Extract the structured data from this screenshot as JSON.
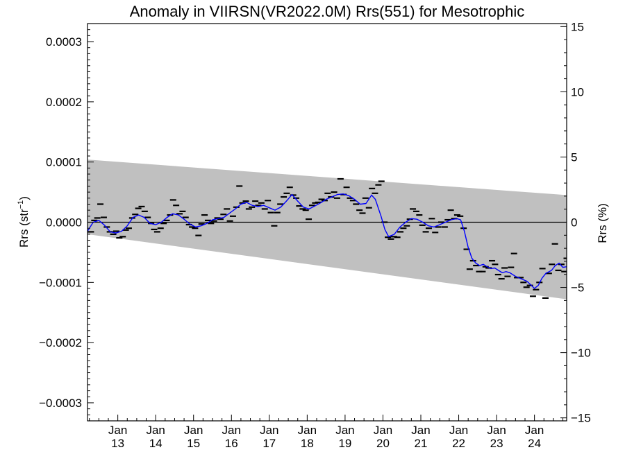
{
  "chart_data": {
    "type": "scatter",
    "title": "Anomaly in VIIRSN(VR2022.0M) Rrs(551) for Mesotrophic",
    "ylabel_left": "Rrs (str",
    "ylabel_left_sup": "−1",
    "ylabel_left_end": ")",
    "ylabel_right": "Rrs (%)",
    "xlim": [
      2012.2,
      2024.85
    ],
    "ylim_left": [
      -0.00033,
      0.00033
    ],
    "ylim_right": [
      -15.23,
      15.23
    ],
    "yticks_left": [
      {
        "v": 0.0003,
        "label": "0.0003"
      },
      {
        "v": 0.0002,
        "label": "0.0002"
      },
      {
        "v": 0.0001,
        "label": "0.0001"
      },
      {
        "v": 0.0,
        "label": "0.0000"
      },
      {
        "v": -0.0001,
        "label": "−0.0001"
      },
      {
        "v": -0.0002,
        "label": "−0.0002"
      },
      {
        "v": -0.0003,
        "label": "−0.0003"
      }
    ],
    "yticks_right": [
      {
        "v": 15,
        "label": "15"
      },
      {
        "v": 10,
        "label": "10"
      },
      {
        "v": 5,
        "label": "5"
      },
      {
        "v": 0,
        "label": "0"
      },
      {
        "v": -5,
        "label": "−5"
      },
      {
        "v": -10,
        "label": "−10"
      },
      {
        "v": -15,
        "label": "−15"
      }
    ],
    "xticks": [
      {
        "v": 2013.0,
        "month": "Jan",
        "year": "13"
      },
      {
        "v": 2014.0,
        "month": "Jan",
        "year": "14"
      },
      {
        "v": 2015.0,
        "month": "Jan",
        "year": "15"
      },
      {
        "v": 2016.0,
        "month": "Jan",
        "year": "16"
      },
      {
        "v": 2017.0,
        "month": "Jan",
        "year": "17"
      },
      {
        "v": 2018.0,
        "month": "Jan",
        "year": "18"
      },
      {
        "v": 2019.0,
        "month": "Jan",
        "year": "19"
      },
      {
        "v": 2020.0,
        "month": "Jan",
        "year": "20"
      },
      {
        "v": 2021.0,
        "month": "Jan",
        "year": "21"
      },
      {
        "v": 2022.0,
        "month": "Jan",
        "year": "22"
      },
      {
        "v": 2023.0,
        "month": "Jan",
        "year": "23"
      },
      {
        "v": 2024.0,
        "month": "Jan",
        "year": "24"
      }
    ],
    "band": {
      "color": "#c0c0c0",
      "upper": [
        [
          2012.2,
          0.000104
        ],
        [
          2024.85,
          4.5e-05
        ]
      ],
      "lower": [
        [
          2012.2,
          -2e-05
        ],
        [
          2024.85,
          -0.000128
        ]
      ]
    },
    "zero_line": 0,
    "smooth_color": "#0000ff",
    "monthly": [
      [
        2012.29,
        -1.6e-05
      ],
      [
        2012.38,
        3e-06
      ],
      [
        2012.46,
        7e-06
      ],
      [
        2012.54,
        3e-05
      ],
      [
        2012.63,
        8e-06
      ],
      [
        2012.71,
        -8e-06
      ],
      [
        2012.79,
        -1.6e-05
      ],
      [
        2012.88,
        -2e-05
      ],
      [
        2012.96,
        -1.5e-05
      ],
      [
        2013.04,
        -2.6e-05
      ],
      [
        2013.13,
        -2.4e-05
      ],
      [
        2013.21,
        -1.3e-05
      ],
      [
        2013.29,
        -1e-05
      ],
      [
        2013.38,
        7e-06
      ],
      [
        2013.46,
        1.3e-05
      ],
      [
        2013.54,
        2.3e-05
      ],
      [
        2013.63,
        2.6e-05
      ],
      [
        2013.71,
        1.8e-05
      ],
      [
        2013.79,
        8e-06
      ],
      [
        2013.88,
        -2e-06
      ],
      [
        2013.96,
        -1.2e-05
      ],
      [
        2014.04,
        -1.6e-05
      ],
      [
        2014.13,
        -1e-05
      ],
      [
        2014.21,
        -2e-06
      ],
      [
        2014.29,
        3e-06
      ],
      [
        2014.38,
        1.2e-05
      ],
      [
        2014.46,
        3.7e-05
      ],
      [
        2014.54,
        2.8e-05
      ],
      [
        2014.63,
        1.4e-05
      ],
      [
        2014.71,
        1.8e-05
      ],
      [
        2014.79,
        8e-06
      ],
      [
        2014.88,
        -4e-06
      ],
      [
        2014.96,
        -8e-06
      ],
      [
        2015.04,
        -1e-05
      ],
      [
        2015.13,
        -2.2e-05
      ],
      [
        2015.21,
        -3e-06
      ],
      [
        2015.29,
        1.2e-05
      ],
      [
        2015.38,
        3e-06
      ],
      [
        2015.46,
        -2e-06
      ],
      [
        2015.54,
        2e-06
      ],
      [
        2015.63,
        7e-06
      ],
      [
        2015.71,
        5e-06
      ],
      [
        2015.79,
        1.3e-05
      ],
      [
        2015.88,
        2.2e-05
      ],
      [
        2015.96,
        2e-06
      ],
      [
        2016.04,
        1e-05
      ],
      [
        2016.13,
        2.5e-05
      ],
      [
        2016.21,
        6e-05
      ],
      [
        2016.29,
        3.2e-05
      ],
      [
        2016.38,
        3.5e-05
      ],
      [
        2016.46,
        2.2e-05
      ],
      [
        2016.54,
        2.5e-05
      ],
      [
        2016.63,
        3.5e-05
      ],
      [
        2016.71,
        2.8e-05
      ],
      [
        2016.79,
        3.2e-05
      ],
      [
        2016.88,
        2.2e-05
      ],
      [
        2016.96,
        3.6e-05
      ],
      [
        2017.04,
        1.6e-05
      ],
      [
        2017.13,
        -6e-06
      ],
      [
        2017.21,
        1.6e-05
      ],
      [
        2017.29,
        3e-05
      ],
      [
        2017.38,
        4.2e-05
      ],
      [
        2017.46,
        4.8e-05
      ],
      [
        2017.54,
        5.8e-05
      ],
      [
        2017.63,
        4.5e-05
      ],
      [
        2017.71,
        4e-05
      ],
      [
        2017.79,
        2.7e-05
      ],
      [
        2017.88,
        2.2e-05
      ],
      [
        2017.96,
        2e-05
      ],
      [
        2018.04,
        5e-06
      ],
      [
        2018.13,
        2.8e-05
      ],
      [
        2018.21,
        3.2e-05
      ],
      [
        2018.29,
        3.3e-05
      ],
      [
        2018.38,
        3.8e-05
      ],
      [
        2018.46,
        3.6e-05
      ],
      [
        2018.54,
        4.8e-05
      ],
      [
        2018.63,
        4.2e-05
      ],
      [
        2018.71,
        5e-05
      ],
      [
        2018.79,
        4e-05
      ],
      [
        2018.88,
        7.2e-05
      ],
      [
        2018.96,
        4.6e-05
      ],
      [
        2019.04,
        5.8e-05
      ],
      [
        2019.13,
        4e-05
      ],
      [
        2019.21,
        3.6e-05
      ],
      [
        2019.29,
        3e-05
      ],
      [
        2019.38,
        2e-05
      ],
      [
        2019.46,
        1.5e-05
      ],
      [
        2019.54,
        4e-05
      ],
      [
        2019.63,
        2.4e-05
      ],
      [
        2019.71,
        5.6e-05
      ],
      [
        2019.79,
        4.8e-05
      ],
      [
        2019.88,
        6.2e-05
      ],
      [
        2019.96,
        6.8e-05
      ],
      [
        2020.04,
        0.0
      ],
      [
        2020.13,
        -2.5e-05
      ],
      [
        2020.21,
        -2.8e-05
      ],
      [
        2020.29,
        -2.4e-05
      ],
      [
        2020.38,
        -2.5e-05
      ],
      [
        2020.46,
        -1.6e-05
      ],
      [
        2020.54,
        -1e-05
      ],
      [
        2020.63,
        -6e-06
      ],
      [
        2020.71,
        5e-06
      ],
      [
        2020.79,
        2.2e-05
      ],
      [
        2020.88,
        1.8e-05
      ],
      [
        2020.96,
        1.2e-05
      ],
      [
        2021.04,
        -5e-06
      ],
      [
        2021.13,
        -1.6e-05
      ],
      [
        2021.21,
        -1e-05
      ],
      [
        2021.29,
        6e-06
      ],
      [
        2021.38,
        -1.7e-05
      ],
      [
        2021.46,
        -8e-06
      ],
      [
        2021.54,
        0.0
      ],
      [
        2021.63,
        -8e-06
      ],
      [
        2021.71,
        4e-06
      ],
      [
        2021.79,
        2e-05
      ],
      [
        2021.88,
        6e-06
      ],
      [
        2021.96,
        1.2e-05
      ],
      [
        2022.04,
        1e-05
      ],
      [
        2022.13,
        -1e-05
      ],
      [
        2022.21,
        -4.5e-05
      ],
      [
        2022.29,
        -7.8e-05
      ],
      [
        2022.38,
        -6.4e-05
      ],
      [
        2022.46,
        -7.2e-05
      ],
      [
        2022.54,
        -8.2e-05
      ],
      [
        2022.63,
        -8.2e-05
      ],
      [
        2022.71,
        -7.4e-05
      ],
      [
        2022.79,
        -7.6e-05
      ],
      [
        2022.88,
        -6.4e-05
      ],
      [
        2022.96,
        -7e-05
      ],
      [
        2023.04,
        -8.7e-05
      ],
      [
        2023.13,
        -9.4e-05
      ],
      [
        2023.21,
        -7.6e-05
      ],
      [
        2023.29,
        -9e-05
      ],
      [
        2023.38,
        -7.5e-05
      ],
      [
        2023.46,
        -5.2e-05
      ],
      [
        2023.54,
        -9.2e-05
      ],
      [
        2023.63,
        -9.2e-05
      ],
      [
        2023.71,
        -0.0001
      ],
      [
        2023.79,
        -0.000108
      ],
      [
        2023.88,
        -0.000105
      ],
      [
        2023.96,
        -0.000123
      ],
      [
        2024.04,
        -0.000112
      ],
      [
        2024.13,
        -0.0001
      ],
      [
        2024.21,
        -7.7e-05
      ],
      [
        2024.29,
        -0.000126
      ],
      [
        2024.38,
        -8.5e-05
      ],
      [
        2024.46,
        -7e-05
      ],
      [
        2024.54,
        -3.6e-05
      ],
      [
        2024.63,
        -8e-05
      ],
      [
        2024.71,
        -7e-05
      ],
      [
        2024.79,
        -8.2e-05
      ],
      [
        2024.85,
        -6e-05
      ]
    ],
    "smooth": [
      [
        2012.2,
        -1.5e-05
      ],
      [
        2012.35,
        0.0
      ],
      [
        2012.5,
        3e-06
      ],
      [
        2012.65,
        -5e-06
      ],
      [
        2012.8,
        -1.6e-05
      ],
      [
        2012.95,
        -1.8e-05
      ],
      [
        2013.1,
        -1.5e-05
      ],
      [
        2013.25,
        -6e-06
      ],
      [
        2013.4,
        8e-06
      ],
      [
        2013.55,
        1.2e-05
      ],
      [
        2013.7,
        8e-06
      ],
      [
        2013.85,
        -2e-06
      ],
      [
        2014.0,
        -4e-06
      ],
      [
        2014.15,
        0.0
      ],
      [
        2014.3,
        8e-06
      ],
      [
        2014.45,
        1.4e-05
      ],
      [
        2014.6,
        1.2e-05
      ],
      [
        2014.75,
        5e-06
      ],
      [
        2014.9,
        -3e-06
      ],
      [
        2015.05,
        -8e-06
      ],
      [
        2015.2,
        -6e-06
      ],
      [
        2015.35,
        -2e-06
      ],
      [
        2015.5,
        4e-06
      ],
      [
        2015.65,
        6e-06
      ],
      [
        2015.8,
        8e-06
      ],
      [
        2015.95,
        1.5e-05
      ],
      [
        2016.1,
        2.2e-05
      ],
      [
        2016.25,
        3e-05
      ],
      [
        2016.4,
        3.3e-05
      ],
      [
        2016.55,
        2.8e-05
      ],
      [
        2016.7,
        2.6e-05
      ],
      [
        2016.85,
        2.8e-05
      ],
      [
        2017.0,
        2.4e-05
      ],
      [
        2017.15,
        2e-05
      ],
      [
        2017.3,
        2.5e-05
      ],
      [
        2017.45,
        3.5e-05
      ],
      [
        2017.6,
        4.6e-05
      ],
      [
        2017.75,
        3.5e-05
      ],
      [
        2017.9,
        2.5e-05
      ],
      [
        2018.05,
        2.2e-05
      ],
      [
        2018.2,
        2.7e-05
      ],
      [
        2018.35,
        3.2e-05
      ],
      [
        2018.5,
        3.8e-05
      ],
      [
        2018.65,
        4.2e-05
      ],
      [
        2018.8,
        4.6e-05
      ],
      [
        2018.95,
        4.7e-05
      ],
      [
        2019.1,
        4.4e-05
      ],
      [
        2019.25,
        3.8e-05
      ],
      [
        2019.4,
        3e-05
      ],
      [
        2019.55,
        3.1e-05
      ],
      [
        2019.7,
        4.5e-05
      ],
      [
        2019.8,
        3.8e-05
      ],
      [
        2019.95,
        1e-05
      ],
      [
        2020.05,
        -1.2e-05
      ],
      [
        2020.15,
        -2.4e-05
      ],
      [
        2020.3,
        -2e-05
      ],
      [
        2020.45,
        -8e-06
      ],
      [
        2020.6,
        0.0
      ],
      [
        2020.75,
        6e-06
      ],
      [
        2020.9,
        5e-06
      ],
      [
        2021.05,
        0.0
      ],
      [
        2021.2,
        -6e-06
      ],
      [
        2021.35,
        -8e-06
      ],
      [
        2021.5,
        -4e-06
      ],
      [
        2021.65,
        0.0
      ],
      [
        2021.8,
        4e-06
      ],
      [
        2021.95,
        6e-06
      ],
      [
        2022.05,
        4e-06
      ],
      [
        2022.15,
        -1.5e-05
      ],
      [
        2022.25,
        -4.2e-05
      ],
      [
        2022.35,
        -6e-05
      ],
      [
        2022.45,
        -6.8e-05
      ],
      [
        2022.55,
        -7.2e-05
      ],
      [
        2022.65,
        -7e-05
      ],
      [
        2022.75,
        -7.4e-05
      ],
      [
        2022.85,
        -7.7e-05
      ],
      [
        2022.95,
        -7.6e-05
      ],
      [
        2023.05,
        -8e-05
      ],
      [
        2023.15,
        -8.4e-05
      ],
      [
        2023.25,
        -8.2e-05
      ],
      [
        2023.35,
        -8.4e-05
      ],
      [
        2023.5,
        -9e-05
      ],
      [
        2023.65,
        -9.4e-05
      ],
      [
        2023.8,
        -9.8e-05
      ],
      [
        2023.92,
        -0.000105
      ],
      [
        2024.0,
        -0.00011
      ],
      [
        2024.1,
        -0.000105
      ],
      [
        2024.2,
        -9.3e-05
      ],
      [
        2024.3,
        -8.5e-05
      ],
      [
        2024.45,
        -8e-05
      ],
      [
        2024.55,
        -7.2e-05
      ],
      [
        2024.65,
        -6.8e-05
      ],
      [
        2024.75,
        -7.5e-05
      ],
      [
        2024.85,
        -7.4e-05
      ]
    ]
  }
}
